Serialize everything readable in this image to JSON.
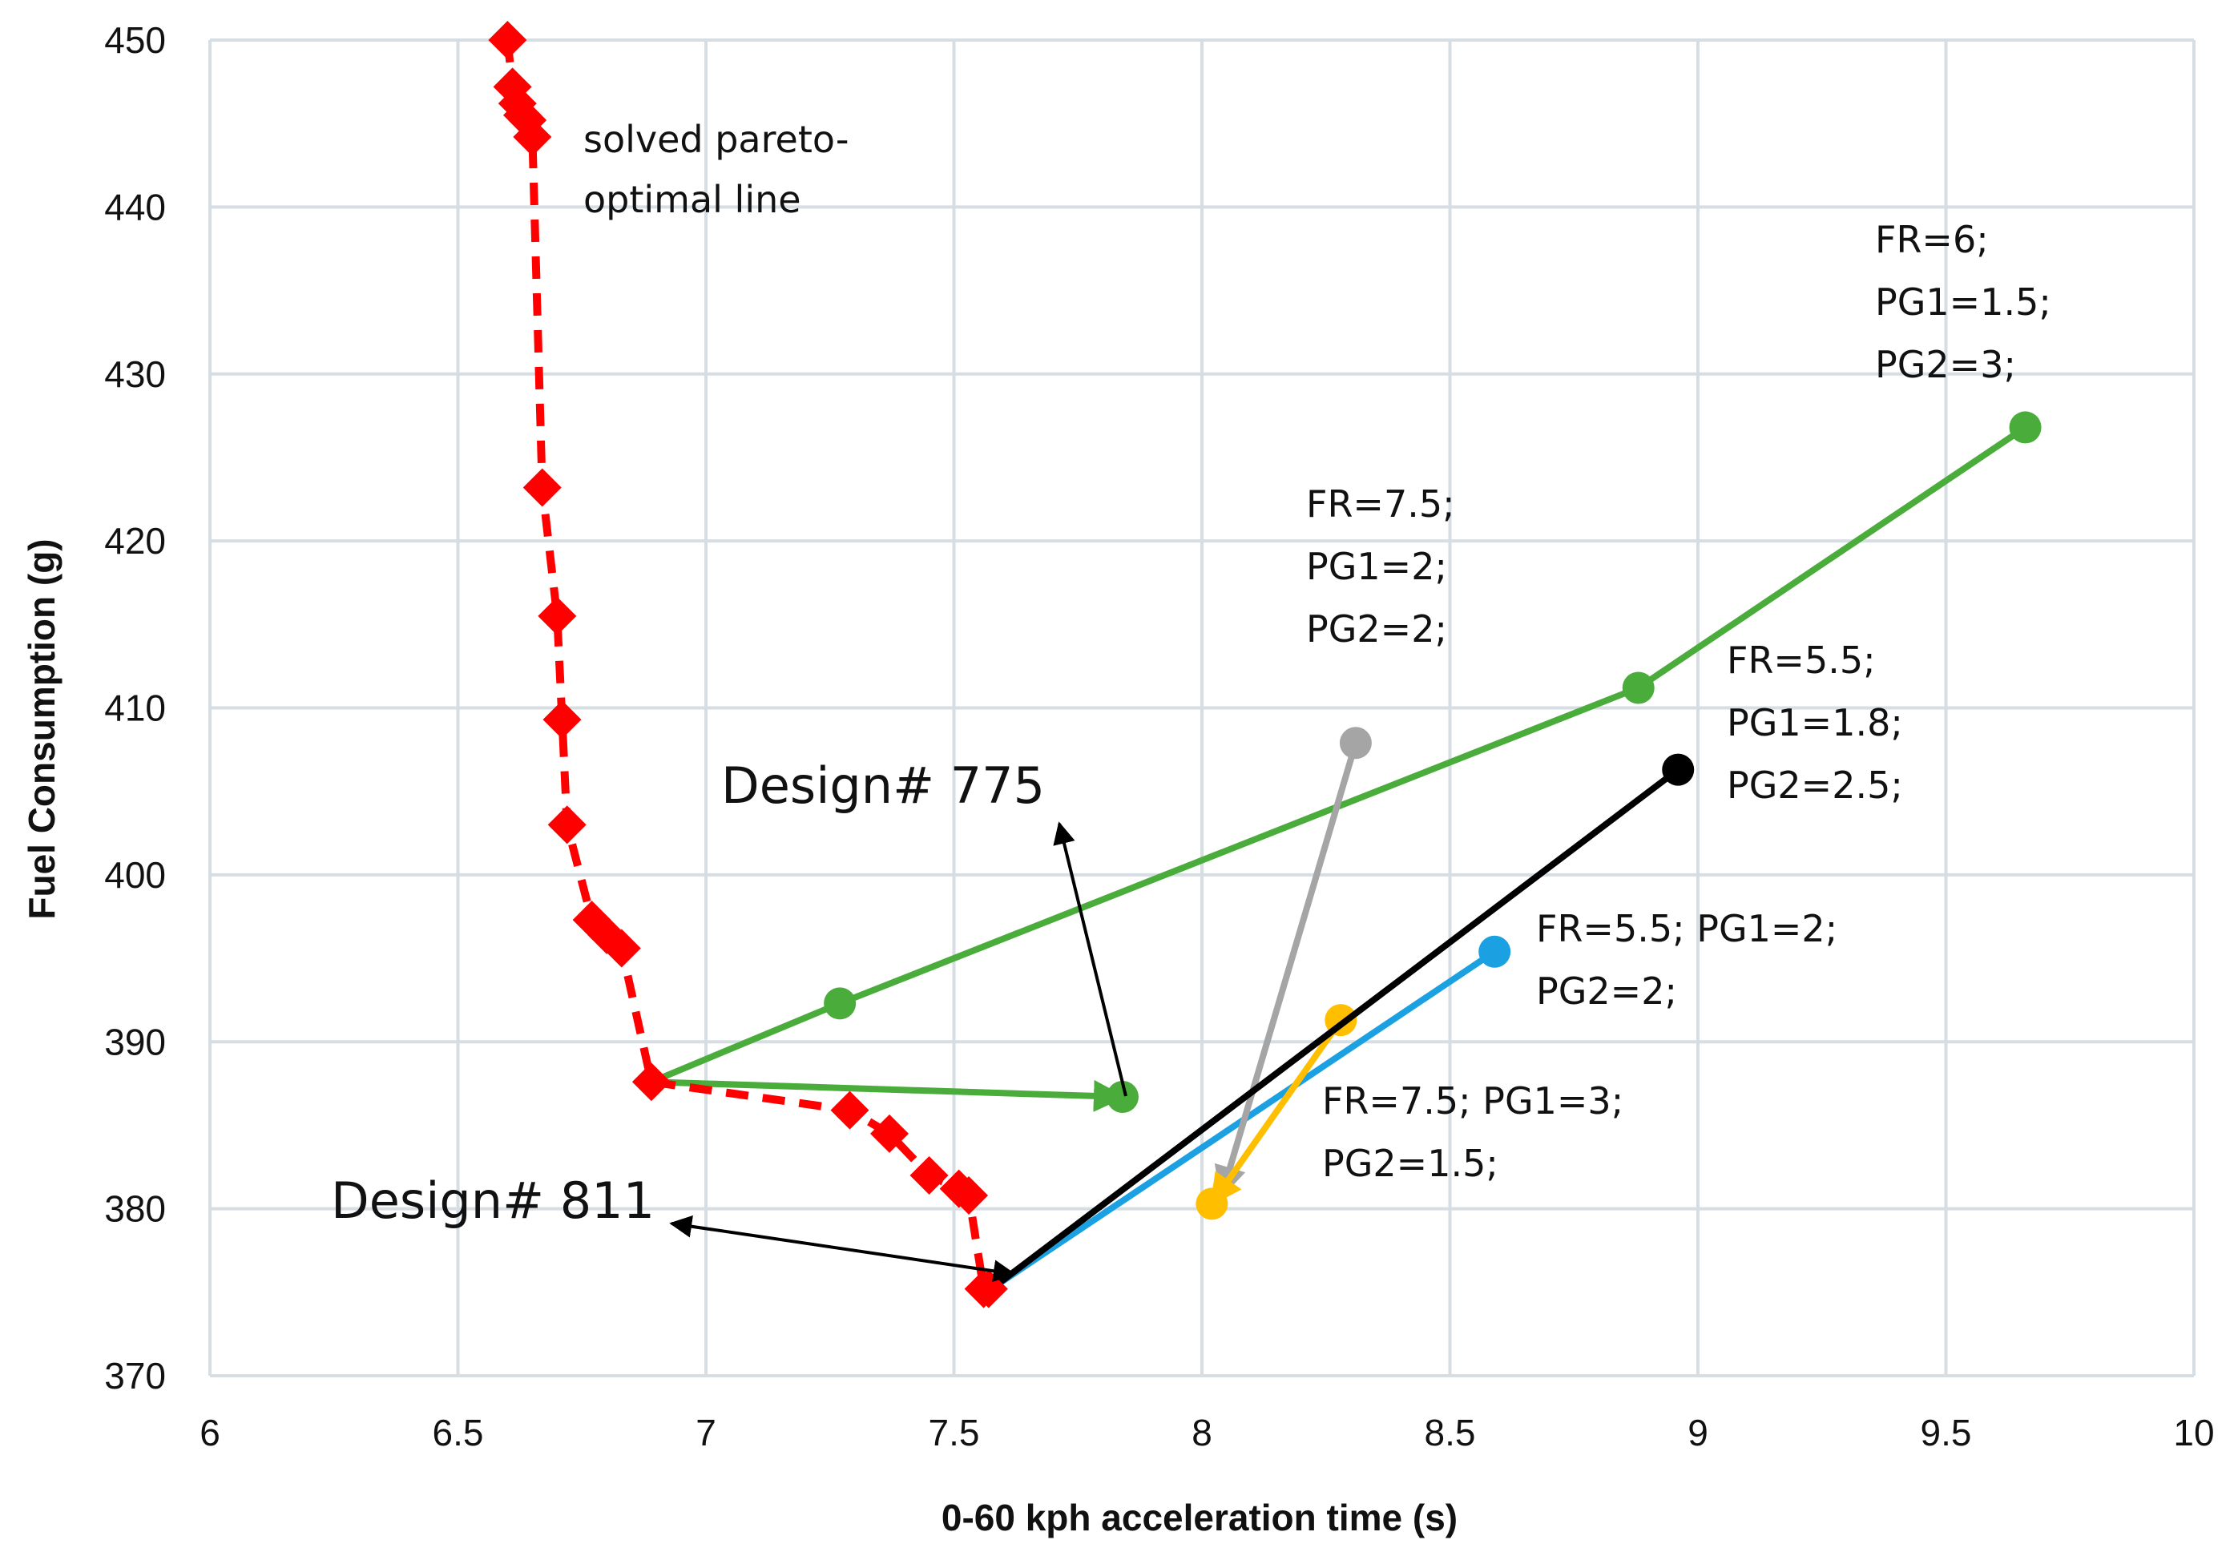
{
  "chart_data": {
    "type": "line",
    "title": "",
    "xlabel": "0-60 kph acceleration time (s)",
    "ylabel": "Fuel Consumption (g)",
    "xlim": [
      6,
      10
    ],
    "ylim": [
      370,
      450
    ],
    "xticks": [
      6,
      6.5,
      7,
      7.5,
      8,
      8.5,
      9,
      9.5,
      10
    ],
    "xtick_labels": [
      "6",
      "6.5",
      "7",
      "7.5",
      "8",
      "8.5",
      "9",
      "9.5",
      "10"
    ],
    "yticks": [
      370,
      380,
      390,
      400,
      410,
      420,
      430,
      440,
      450
    ],
    "ytick_labels": [
      "370",
      "380",
      "390",
      "400",
      "410",
      "420",
      "430",
      "440",
      "450"
    ],
    "grid": true,
    "series": [
      {
        "name": "solved pareto-optimal line",
        "style": "dashed-diamond",
        "color": "#ff0000",
        "x": [
          6.6,
          6.61,
          6.62,
          6.63,
          6.64,
          6.65,
          6.67,
          6.7,
          6.71,
          6.72,
          6.77,
          6.8,
          6.83,
          6.89,
          7.29,
          7.37,
          7.45,
          7.51,
          7.53,
          7.56,
          7.57
        ],
        "y": [
          450,
          447.2,
          446.2,
          445.5,
          445.2,
          444.2,
          423.2,
          415.5,
          409.3,
          403,
          397.3,
          396.4,
          395.6,
          387.6,
          385.9,
          384.5,
          382,
          381.2,
          380.8,
          375.2,
          375.2
        ]
      },
      {
        "name": "FR=6; PG1=1.5; PG2=3;",
        "color": "#4aac3a",
        "x": [
          6.89,
          7.27,
          8.88,
          9.66
        ],
        "y": [
          387.6,
          392.3,
          411.2,
          426.8
        ]
      },
      {
        "name": "Design# 775 link",
        "color": "#4aac3a",
        "arrow": true,
        "x": [
          6.89,
          7.84
        ],
        "y": [
          387.6,
          386.7
        ]
      },
      {
        "name": "FR=7.5; PG1=2; PG2=2;",
        "color": "#a5a5a5",
        "arrow_to": [
          8.04,
          380.8
        ],
        "x": [
          8.31,
          8.04
        ],
        "y": [
          407.9,
          380.8
        ]
      },
      {
        "name": "FR=5.5; PG1=1.8; PG2=2.5;",
        "color": "#000000",
        "x": [
          8.96,
          7.58
        ],
        "y": [
          406.3,
          375.3
        ]
      },
      {
        "name": "FR=5.5; PG1=2; PG2=2;",
        "color": "#1ba1e2",
        "x": [
          8.59,
          7.58
        ],
        "y": [
          395.4,
          375.3
        ]
      },
      {
        "name": "FR=7.5; PG1=3; PG2=1.5;",
        "color": "#ffbf00",
        "x": [
          8.28,
          8.02
        ],
        "y": [
          391.3,
          380.3
        ]
      }
    ],
    "annotations": [
      {
        "name": "pareto-label",
        "lines": [
          "solved pareto-",
          "optimal line"
        ]
      },
      {
        "name": "fr6-label",
        "lines": [
          "FR=6;",
          "PG1=1.5;",
          "PG2=3;"
        ]
      },
      {
        "name": "fr75-pg2-label",
        "lines": [
          "FR=7.5;",
          "PG1=2;",
          "PG2=2;"
        ]
      },
      {
        "name": "fr55-pg18-label",
        "lines": [
          "FR=5.5;",
          "PG1=1.8;",
          "PG2=2.5;"
        ]
      },
      {
        "name": "fr55-pg2-label",
        "lines": [
          "FR=5.5; PG1=2;",
          "PG2=2;"
        ]
      },
      {
        "name": "fr75-pg3-label",
        "lines": [
          "FR=7.5; PG1=3;",
          "PG2=1.5;"
        ]
      },
      {
        "name": "design-775-label",
        "lines": [
          "Design# 775"
        ]
      },
      {
        "name": "design-811-label",
        "lines": [
          "Design# 811"
        ]
      }
    ]
  }
}
